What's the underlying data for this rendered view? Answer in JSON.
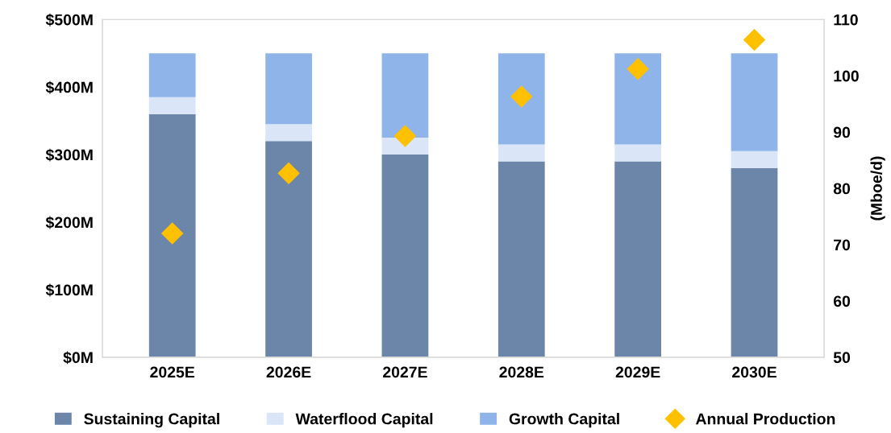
{
  "chart_data": {
    "type": "bar",
    "stacked": true,
    "categories": [
      "2025E",
      "2026E",
      "2027E",
      "2028E",
      "2029E",
      "2030E"
    ],
    "series": [
      {
        "name": "Sustaining Capital",
        "color": "#6c86aa",
        "values": [
          360,
          320,
          300,
          290,
          290,
          280
        ]
      },
      {
        "name": "Waterflood Capital",
        "color": "#dae6f8",
        "values": [
          25,
          25,
          25,
          25,
          25,
          25
        ]
      },
      {
        "name": "Growth Capital",
        "color": "#8eb4ea",
        "values": [
          65,
          105,
          125,
          135,
          135,
          145
        ]
      },
      {
        "name": "Annual Production",
        "type": "scatter",
        "axis": "y2",
        "marker": "diamond",
        "color": "#ffc000",
        "values": [
          72,
          82.7,
          89.3,
          96.3,
          101.2,
          106.4
        ]
      }
    ],
    "ylim": [
      0,
      500
    ],
    "yticks": [
      {
        "value": 0,
        "label": "$0M"
      },
      {
        "value": 100,
        "label": "$100M"
      },
      {
        "value": 200,
        "label": "$200M"
      },
      {
        "value": 300,
        "label": "$300M"
      },
      {
        "value": 400,
        "label": "$400M"
      },
      {
        "value": 500,
        "label": "$500M"
      }
    ],
    "y2lim": [
      50,
      110
    ],
    "y2ticks": [
      50,
      60,
      70,
      80,
      90,
      100,
      110
    ],
    "y2label": "(Mboe/d)",
    "grid": false,
    "legend": "bottom"
  }
}
